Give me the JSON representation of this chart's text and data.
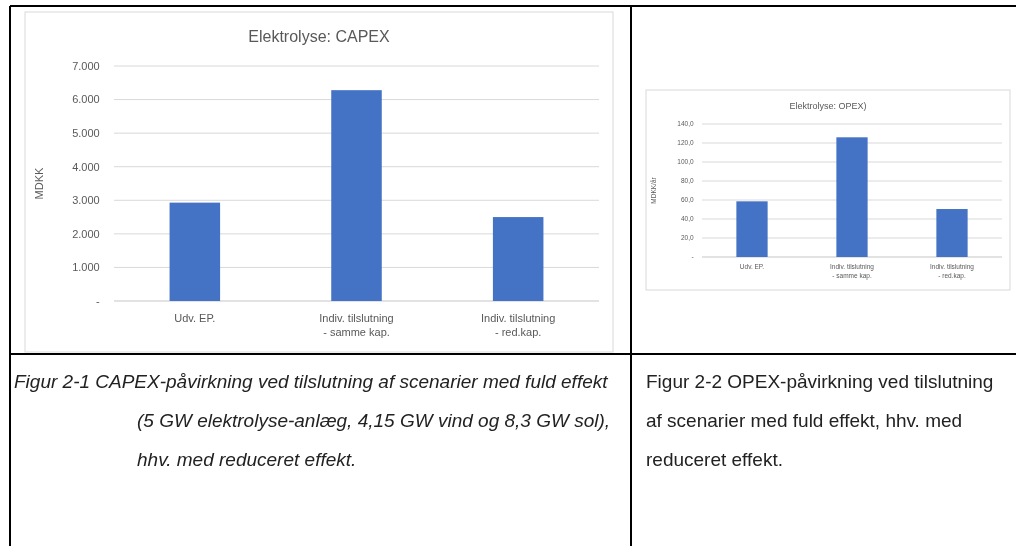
{
  "chart_data": [
    {
      "type": "bar",
      "title": "Elektrolyse: CAPEX",
      "ylabel": "MDKK",
      "categories": [
        "Udv. EP.",
        "Indiv. tilslutning\n- samme kap.",
        "Indiv. tilslutning\n- red.kap."
      ],
      "values": [
        2930,
        6280,
        2500
      ],
      "color": "#4472c4",
      "ylim": [
        0,
        7000
      ],
      "yticks": [
        {
          "value": 0,
          "label": "-"
        },
        {
          "value": 1000,
          "label": "1.000"
        },
        {
          "value": 2000,
          "label": "2.000"
        },
        {
          "value": 3000,
          "label": "3.000"
        },
        {
          "value": 4000,
          "label": "4.000"
        },
        {
          "value": 5000,
          "label": "5.000"
        },
        {
          "value": 6000,
          "label": "6.000"
        },
        {
          "value": 7000,
          "label": "7.000"
        }
      ],
      "grid": "y",
      "annotations": [
        "Figur 2-1 CAPEX-påvirkning ved tilslutning af scenarier med fuld effekt (5 GW elektrolyse-anlæg, 4,15 GW vind og 8,3 GW sol), hhv. med reduceret effekt."
      ]
    },
    {
      "type": "bar",
      "title": "Elektrolyse: OPEX)",
      "ylabel": "MDKK/år",
      "categories": [
        "Udv. EP.",
        "Indiv. tilslutning\n- samme kap.",
        "Indiv. tilslutning\n- red.kap."
      ],
      "values": [
        58.6,
        126,
        50.5
      ],
      "color": "#4472c4",
      "ylim": [
        0,
        140
      ],
      "yticks": [
        {
          "value": 0,
          "label": "-"
        },
        {
          "value": 20,
          "label": "20,0"
        },
        {
          "value": 40,
          "label": "40,0"
        },
        {
          "value": 60,
          "label": "60,0"
        },
        {
          "value": 80,
          "label": "80,0"
        },
        {
          "value": 100,
          "label": "100,0"
        },
        {
          "value": 120,
          "label": "120,0"
        },
        {
          "value": 140,
          "label": "140,0"
        }
      ],
      "grid": "y",
      "annotations": [
        "Figur 2-2 OPEX-påvirkning ved tilslutning af scenarier med fuld effekt, hhv. med reduceret effekt."
      ]
    }
  ]
}
